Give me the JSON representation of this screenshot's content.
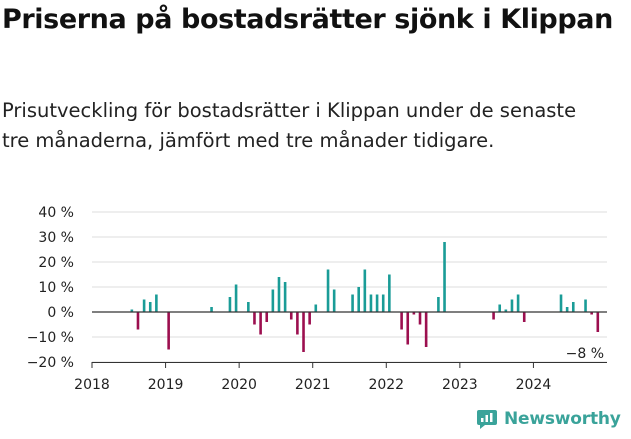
{
  "header": {
    "title": "Priserna på bostadsrätter sjönk i Klippan",
    "subtitle": "Prisutveckling för bostadsrätter i Klippan under de senaste tre månaderna, jämfört med tre månader tidigare."
  },
  "brand": {
    "name": "Newsworthy",
    "color": "#3aa39a",
    "icon": "newsworthy-logo-icon"
  },
  "colors": {
    "positive": "#1a9c97",
    "negative": "#9c0f4f",
    "grid": "#dddddd",
    "zero": "#333333"
  },
  "chart_data": {
    "type": "bar",
    "title": "",
    "xlabel": "",
    "ylabel": "",
    "ylim": [
      -20,
      40
    ],
    "xlim": [
      "2018-01",
      "2025-01"
    ],
    "grid": true,
    "yticks": [
      40,
      30,
      20,
      10,
      0,
      -10,
      -20
    ],
    "ytick_labels": [
      "40 %",
      "30 %",
      "20 %",
      "10 %",
      "0 %",
      "−10 %",
      "−20 %"
    ],
    "xtick_labels": [
      "2018",
      "2019",
      "2020",
      "2021",
      "2022",
      "2023",
      "2024"
    ],
    "last_value_label": "−8 %",
    "series": [
      {
        "values": [
          {
            "x": "2018-07",
            "y": 1
          },
          {
            "x": "2018-08",
            "y": -7
          },
          {
            "x": "2018-09",
            "y": 5
          },
          {
            "x": "2018-10",
            "y": 4
          },
          {
            "x": "2018-11",
            "y": 7
          },
          {
            "x": "2019-01",
            "y": -15
          },
          {
            "x": "2019-08",
            "y": 2
          },
          {
            "x": "2019-11",
            "y": 6
          },
          {
            "x": "2019-12",
            "y": 11
          },
          {
            "x": "2020-02",
            "y": 4
          },
          {
            "x": "2020-03",
            "y": -5
          },
          {
            "x": "2020-04",
            "y": -9
          },
          {
            "x": "2020-05",
            "y": -4
          },
          {
            "x": "2020-06",
            "y": 9
          },
          {
            "x": "2020-07",
            "y": 14
          },
          {
            "x": "2020-08",
            "y": 12
          },
          {
            "x": "2020-09",
            "y": -3
          },
          {
            "x": "2020-10",
            "y": -9
          },
          {
            "x": "2020-11",
            "y": -16
          },
          {
            "x": "2020-12",
            "y": -5
          },
          {
            "x": "2021-01",
            "y": 3
          },
          {
            "x": "2021-03",
            "y": 17
          },
          {
            "x": "2021-04",
            "y": 9
          },
          {
            "x": "2021-07",
            "y": 7
          },
          {
            "x": "2021-08",
            "y": 10
          },
          {
            "x": "2021-09",
            "y": 17
          },
          {
            "x": "2021-10",
            "y": 7
          },
          {
            "x": "2021-11",
            "y": 7
          },
          {
            "x": "2021-12",
            "y": 7
          },
          {
            "x": "2022-01",
            "y": 15
          },
          {
            "x": "2022-03",
            "y": -7
          },
          {
            "x": "2022-04",
            "y": -13
          },
          {
            "x": "2022-05",
            "y": -1
          },
          {
            "x": "2022-06",
            "y": -5
          },
          {
            "x": "2022-07",
            "y": -14
          },
          {
            "x": "2022-09",
            "y": 6
          },
          {
            "x": "2022-10",
            "y": 28
          },
          {
            "x": "2023-06",
            "y": -3
          },
          {
            "x": "2023-07",
            "y": 3
          },
          {
            "x": "2023-08",
            "y": 1
          },
          {
            "x": "2023-09",
            "y": 5
          },
          {
            "x": "2023-10",
            "y": 7
          },
          {
            "x": "2023-11",
            "y": -4
          },
          {
            "x": "2024-05",
            "y": 7
          },
          {
            "x": "2024-06",
            "y": 2
          },
          {
            "x": "2024-07",
            "y": 4
          },
          {
            "x": "2024-09",
            "y": 5
          },
          {
            "x": "2024-10",
            "y": -1
          },
          {
            "x": "2024-11",
            "y": -8
          }
        ]
      }
    ]
  }
}
